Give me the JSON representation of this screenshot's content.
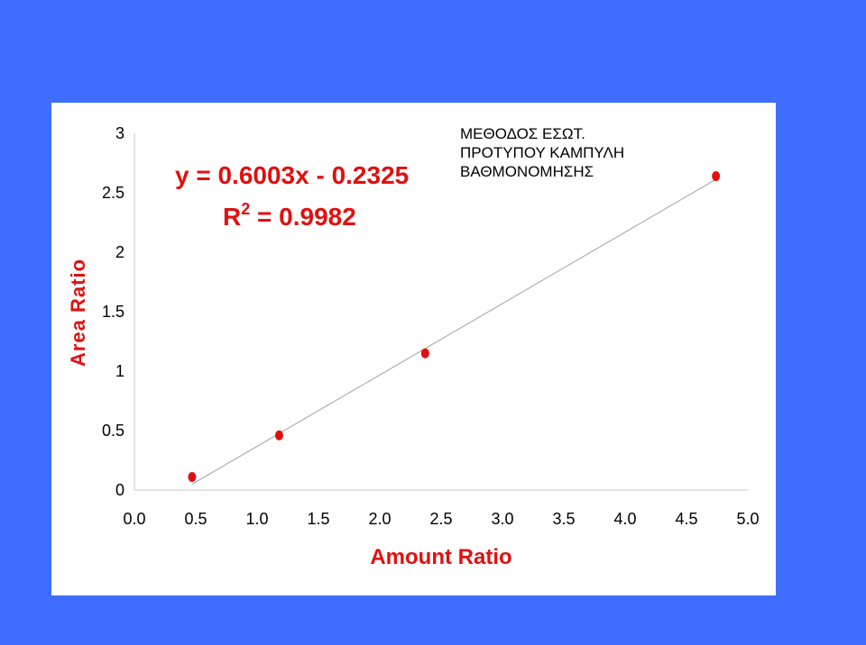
{
  "chart_data": {
    "type": "scatter",
    "title_lines": [
      "ΜΕΘΟΔΟΣ ΕΣΩΤ.",
      "ΠΡΟΤΥΠΟΥ ΚΑΜΠΥΛΗ",
      "ΒΑΘΜΟΝΟΜΗΣΗΣ"
    ],
    "xlabel": "Amount Ratio",
    "ylabel": "Area Ratio",
    "xlim": [
      0,
      5
    ],
    "ylim": [
      0,
      3
    ],
    "x_ticks": [
      "0.0",
      "0.5",
      "1.0",
      "1.5",
      "2.0",
      "2.5",
      "3.0",
      "3.5",
      "4.0",
      "4.5",
      "5.0"
    ],
    "y_ticks": [
      "0",
      "0.5",
      "1",
      "1.5",
      "2",
      "2.5",
      "3"
    ],
    "grid": false,
    "series": [
      {
        "points": [
          {
            "x": 0.47,
            "y": 0.11
          },
          {
            "x": 1.18,
            "y": 0.46
          },
          {
            "x": 2.37,
            "y": 1.15
          },
          {
            "x": 4.74,
            "y": 2.64
          }
        ],
        "color": "#e01010"
      }
    ],
    "trendline": {
      "slope": 0.6003,
      "intercept": -0.2325,
      "x_range": [
        0.47,
        4.74
      ],
      "color": "#a0a0a0"
    },
    "equation_text": "y = 0.6003x - 0.2325",
    "r2_label": "R",
    "r2_exponent": "2",
    "r2_value_text": " = 0.9982"
  }
}
